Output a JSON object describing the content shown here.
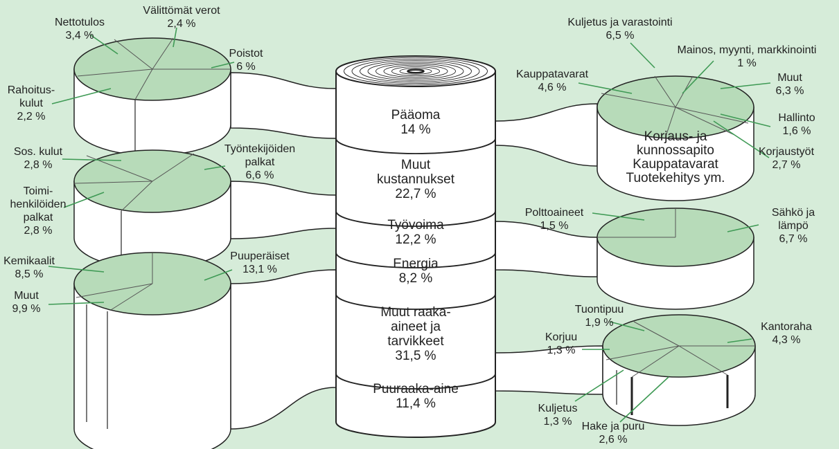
{
  "left_pies": [
    {
      "slices": [
        {
          "lines": [
            "Nettotulos",
            "3,4 %"
          ]
        },
        {
          "lines": [
            "Välittömät verot",
            "2,4 %"
          ]
        },
        {
          "lines": [
            "Poistot",
            "6 %"
          ]
        },
        {
          "lines": [
            "Rahoitus-",
            "kulut",
            "2,2 %"
          ]
        }
      ]
    },
    {
      "slices": [
        {
          "lines": [
            "Sos. kulut",
            "2,8 %"
          ]
        },
        {
          "lines": [
            "Työntekijöiden",
            "palkat",
            "6,6 %"
          ]
        },
        {
          "lines": [
            "Toimi-",
            "henkilöiden",
            "palkat",
            "2,8 %"
          ]
        }
      ]
    },
    {
      "slices": [
        {
          "lines": [
            "Kemikaalit",
            "8,5 %"
          ]
        },
        {
          "lines": [
            "Muut",
            "9,9 %"
          ]
        },
        {
          "lines": [
            "Puuperäiset",
            "13,1 %"
          ]
        }
      ]
    }
  ],
  "center": {
    "segments": [
      {
        "lines": [
          "Pääoma",
          "14 %"
        ]
      },
      {
        "lines": [
          "Muut",
          "kustannukset",
          "22,7 %"
        ]
      },
      {
        "lines": [
          "Työvoima",
          "12,2 %"
        ]
      },
      {
        "lines": [
          "Energia",
          "8,2 %"
        ]
      },
      {
        "lines": [
          "Muut raaka-",
          "aineet ja",
          "tarvikkeet",
          "31,5 %"
        ]
      },
      {
        "lines": [
          "Puuraaka-aine",
          "11,4 %"
        ]
      }
    ]
  },
  "right_pies": [
    {
      "slices": [
        {
          "lines": [
            "Kuljetus ja varastointi",
            "6,5 %"
          ]
        },
        {
          "lines": [
            "Mainos, myynti, markkinointi",
            "1 %"
          ]
        },
        {
          "lines": [
            "Kauppatavarat",
            "4,6 %"
          ]
        },
        {
          "lines": [
            "Muut",
            "6,3 %"
          ]
        },
        {
          "lines": [
            "Hallinto",
            "1,6 %"
          ]
        },
        {
          "lines": [
            "Korjaustyöt",
            "2,7 %"
          ]
        }
      ],
      "side_lines": [
        "Korjaus- ja",
        "kunnossapito",
        "Kauppatavarat",
        "Tuotekehitys ym."
      ]
    },
    {
      "slices": [
        {
          "lines": [
            "Polttoaineet",
            "1,5 %"
          ]
        },
        {
          "lines": [
            "Sähkö ja",
            "lämpö",
            "6,7 %"
          ]
        }
      ]
    },
    {
      "slices": [
        {
          "lines": [
            "Tuontipuu",
            "1,9 %"
          ]
        },
        {
          "lines": [
            "Kantoraha",
            "4,3 %"
          ]
        },
        {
          "lines": [
            "Korjuu",
            "1,3 %"
          ]
        },
        {
          "lines": [
            "Kuljetus",
            "1,3 %"
          ]
        },
        {
          "lines": [
            "Hake ja puru",
            "2,6 %"
          ]
        }
      ]
    }
  ]
}
